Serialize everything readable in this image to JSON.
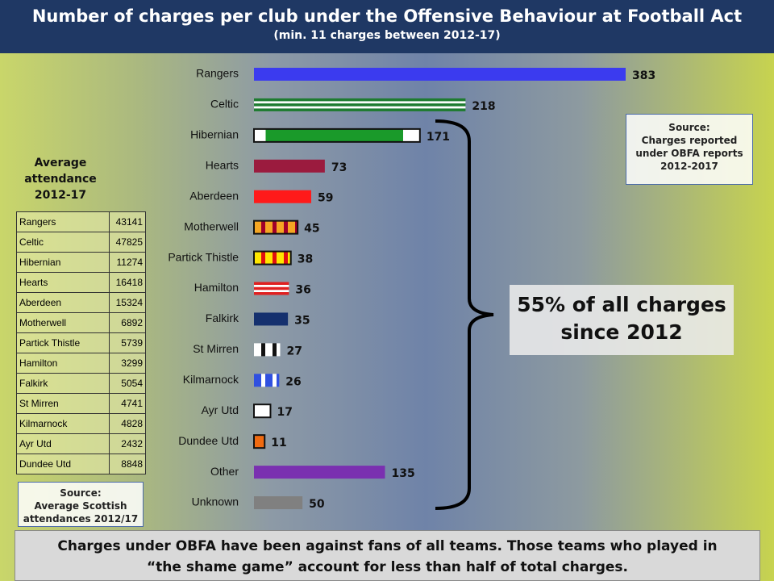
{
  "header": {
    "title": "Number of charges per club under the Offensive Behaviour at Football Act",
    "subtitle": "(min. 11 charges between 2012-17)"
  },
  "chart_data": {
    "type": "bar",
    "orientation": "horizontal",
    "categories": [
      "Rangers",
      "Celtic",
      "Hibernian",
      "Hearts",
      "Aberdeen",
      "Motherwell",
      "Partick Thistle",
      "Hamilton",
      "Falkirk",
      "St Mirren",
      "Kilmarnock",
      "Ayr Utd",
      "Dundee Utd",
      "Other",
      "Unknown"
    ],
    "values": [
      383,
      218,
      171,
      73,
      59,
      45,
      38,
      36,
      35,
      27,
      26,
      17,
      11,
      135,
      50
    ],
    "colors": [
      "#3b3bef",
      "#1e7b30",
      "#1a9a2a",
      "#9b1b3e",
      "#ff1a1a",
      "#f5a623",
      "#ffe600",
      "#ffffff",
      "#15306e",
      "#ffffff",
      "#3050e0",
      "#ffffff",
      "#f06a10",
      "#7a30b0",
      "#808080"
    ],
    "accents": [
      null,
      "#ffffff",
      "#ffffff",
      null,
      null,
      "#a0002a",
      "#e01010",
      "#e02020",
      null,
      "#111111",
      "#ffffff",
      null,
      null,
      null,
      null
    ],
    "patterns": [
      "solid",
      "hoops",
      "ends",
      "solid",
      "solid",
      "vstripes",
      "vstripes",
      "hoops",
      "solid",
      "vstripes",
      "vstripes",
      "solid",
      "solid",
      "solid",
      "solid"
    ],
    "outlines": [
      false,
      false,
      true,
      false,
      false,
      true,
      true,
      false,
      false,
      false,
      false,
      true,
      true,
      false,
      false
    ],
    "annotation": "55% of all charges since 2012",
    "source": [
      "Source:",
      "Charges reported under OBFA reports 2012-2017"
    ]
  },
  "attendance": {
    "title": "Average attendance 2012-17",
    "rows": [
      [
        "Rangers",
        "43141"
      ],
      [
        "Celtic",
        "47825"
      ],
      [
        "Hibernian",
        "11274"
      ],
      [
        "Hearts",
        "16418"
      ],
      [
        "Aberdeen",
        "15324"
      ],
      [
        "Motherwell",
        "6892"
      ],
      [
        "Partick Thistle",
        "5739"
      ],
      [
        "Hamilton",
        "3299"
      ],
      [
        "Falkirk",
        "5054"
      ],
      [
        "St Mirren",
        "4741"
      ],
      [
        "Kilmarnock",
        "4828"
      ],
      [
        "Ayr Utd",
        "2432"
      ],
      [
        "Dundee Utd",
        "8848"
      ]
    ],
    "source": [
      "Source:",
      "Average Scottish attendances 2012/17"
    ]
  },
  "footer": "Charges under OBFA have been against fans of all teams. Those teams who played in “the shame game” account for less than half of total charges."
}
